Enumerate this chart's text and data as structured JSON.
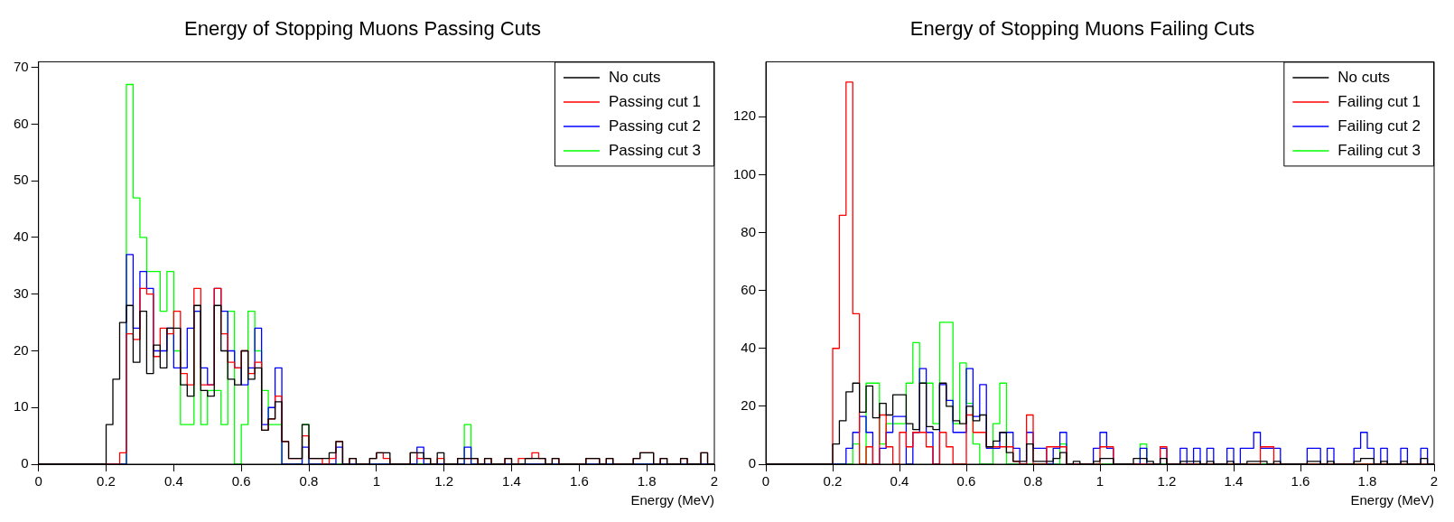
{
  "chart_data": [
    {
      "type": "histogram",
      "title": "Energy of Stopping Muons Passing Cuts",
      "xlabel": "Energy (MeV)",
      "bins": [
        0,
        0.02,
        0.04,
        0.06,
        0.08,
        0.1,
        0.12,
        0.14,
        0.16,
        0.18,
        0.2,
        0.22,
        0.24,
        0.26,
        0.28,
        0.3,
        0.32,
        0.34,
        0.36,
        0.38,
        0.4,
        0.42,
        0.44,
        0.46,
        0.48,
        0.5,
        0.52,
        0.54,
        0.56,
        0.58,
        0.6,
        0.62,
        0.64,
        0.66,
        0.68,
        0.7,
        0.72,
        0.74,
        0.76,
        0.78,
        0.8,
        0.82,
        0.84,
        0.86,
        0.88,
        0.9,
        0.92,
        0.94,
        0.96,
        0.98,
        1,
        1.02,
        1.04,
        1.06,
        1.08,
        1.1,
        1.12,
        1.14,
        1.16,
        1.18,
        1.2,
        1.22,
        1.24,
        1.26,
        1.28,
        1.3,
        1.32,
        1.34,
        1.36,
        1.38,
        1.4,
        1.42,
        1.44,
        1.46,
        1.48,
        1.5,
        1.52,
        1.54,
        1.56,
        1.58,
        1.6,
        1.62,
        1.64,
        1.66,
        1.68,
        1.7,
        1.72,
        1.74,
        1.76,
        1.78,
        1.8,
        1.82,
        1.84,
        1.86,
        1.88,
        1.9,
        1.92,
        1.94,
        1.96,
        1.98,
        2
      ],
      "series": [
        {
          "name": "No cuts",
          "color": "#000000",
          "values": [
            0,
            0,
            0,
            0,
            0,
            0,
            0,
            0,
            0,
            0,
            7,
            15,
            25,
            28,
            18,
            27,
            16,
            21,
            17,
            24,
            24,
            14,
            12,
            28,
            13,
            12,
            28,
            20,
            15,
            14,
            20,
            15,
            17,
            6,
            8,
            11,
            4,
            1,
            1,
            7,
            1,
            1,
            1,
            2,
            4,
            0,
            1,
            0,
            0,
            1,
            2,
            2,
            0,
            0,
            0,
            2,
            2,
            1,
            0,
            2,
            0,
            0,
            1,
            1,
            1,
            0,
            1,
            0,
            0,
            1,
            0,
            0,
            1,
            1,
            1,
            0,
            1,
            0,
            0,
            0,
            0,
            1,
            1,
            0,
            1,
            0,
            0,
            0,
            1,
            2,
            2,
            0,
            1,
            0,
            0,
            1,
            0,
            0,
            2,
            0
          ]
        },
        {
          "name": "Passing cut 1",
          "color": "#ff0000",
          "values": [
            0,
            0,
            0,
            0,
            0,
            0,
            0,
            0,
            0,
            0,
            0,
            0,
            2,
            23,
            22,
            31,
            30,
            19,
            24,
            23,
            27,
            16,
            14,
            31,
            14,
            14,
            31,
            23,
            18,
            17,
            20,
            16,
            18,
            6,
            8,
            12,
            4,
            1,
            1,
            5,
            1,
            1,
            0,
            1,
            4,
            0,
            1,
            0,
            0,
            1,
            2,
            1,
            0,
            0,
            0,
            2,
            1,
            1,
            0,
            1,
            0,
            0,
            1,
            1,
            1,
            0,
            1,
            0,
            0,
            1,
            0,
            1,
            1,
            2,
            1,
            0,
            1,
            0,
            0,
            0,
            0,
            1,
            1,
            0,
            1,
            0,
            0,
            0,
            1,
            2,
            2,
            0,
            1,
            0,
            0,
            1,
            0,
            0,
            2,
            0
          ]
        },
        {
          "name": "Passing cut 2",
          "color": "#0000ff",
          "values": [
            0,
            0,
            0,
            0,
            0,
            0,
            0,
            0,
            0,
            0,
            0,
            0,
            0,
            37,
            24,
            34,
            31,
            20,
            20,
            24,
            17,
            17,
            24,
            27,
            17,
            14,
            31,
            27,
            20,
            17,
            14,
            17,
            24,
            7,
            10,
            17,
            0,
            0,
            0,
            3,
            0,
            0,
            0,
            0,
            3,
            0,
            0,
            0,
            0,
            0,
            0,
            0,
            0,
            0,
            0,
            0,
            3,
            0,
            0,
            0,
            0,
            0,
            0,
            3,
            0,
            0,
            0,
            0,
            0,
            0,
            0,
            0,
            0,
            0,
            0,
            0,
            0,
            0,
            0,
            0,
            0,
            0,
            0,
            0,
            0,
            0,
            0,
            0,
            0,
            0,
            0,
            0,
            0,
            0,
            0,
            0,
            0,
            0,
            0,
            0
          ]
        },
        {
          "name": "Passing cut 3",
          "color": "#00ff00",
          "values": [
            0,
            0,
            0,
            0,
            0,
            0,
            0,
            0,
            0,
            0,
            0,
            0,
            0,
            67,
            47,
            40,
            34,
            34,
            27,
            34,
            20,
            7,
            7,
            27,
            7,
            13,
            13,
            7,
            27,
            0,
            7,
            27,
            20,
            13,
            7,
            7,
            0,
            0,
            0,
            7,
            0,
            0,
            0,
            0,
            0,
            0,
            0,
            0,
            0,
            0,
            0,
            0,
            0,
            0,
            0,
            0,
            0,
            0,
            0,
            0,
            0,
            0,
            0,
            7,
            0,
            0,
            0,
            0,
            0,
            0,
            0,
            0,
            0,
            0,
            0,
            0,
            0,
            0,
            0,
            0,
            0,
            0,
            0,
            0,
            0,
            0,
            0,
            0,
            0,
            0,
            0,
            0,
            0,
            0,
            0,
            0,
            0,
            0,
            0,
            0
          ]
        }
      ],
      "xlim": [
        0,
        2
      ],
      "xticks": [
        0,
        0.2,
        0.4,
        0.6,
        0.8,
        1,
        1.2,
        1.4,
        1.6,
        1.8,
        2
      ],
      "ylim": [
        0,
        71
      ],
      "yticks": [
        0,
        10,
        20,
        30,
        40,
        50,
        60,
        70
      ],
      "legend": "top right"
    },
    {
      "type": "histogram",
      "title": "Energy of Stopping Muons Failing Cuts",
      "xlabel": "Energy (MeV)",
      "bins": [
        0,
        0.02,
        0.04,
        0.06,
        0.08,
        0.1,
        0.12,
        0.14,
        0.16,
        0.18,
        0.2,
        0.22,
        0.24,
        0.26,
        0.28,
        0.3,
        0.32,
        0.34,
        0.36,
        0.38,
        0.4,
        0.42,
        0.44,
        0.46,
        0.48,
        0.5,
        0.52,
        0.54,
        0.56,
        0.58,
        0.6,
        0.62,
        0.64,
        0.66,
        0.68,
        0.7,
        0.72,
        0.74,
        0.76,
        0.78,
        0.8,
        0.82,
        0.84,
        0.86,
        0.88,
        0.9,
        0.92,
        0.94,
        0.96,
        0.98,
        1,
        1.02,
        1.04,
        1.06,
        1.08,
        1.1,
        1.12,
        1.14,
        1.16,
        1.18,
        1.2,
        1.22,
        1.24,
        1.26,
        1.28,
        1.3,
        1.32,
        1.34,
        1.36,
        1.38,
        1.4,
        1.42,
        1.44,
        1.46,
        1.48,
        1.5,
        1.52,
        1.54,
        1.56,
        1.58,
        1.6,
        1.62,
        1.64,
        1.66,
        1.68,
        1.7,
        1.72,
        1.74,
        1.76,
        1.78,
        1.8,
        1.82,
        1.84,
        1.86,
        1.88,
        1.9,
        1.92,
        1.94,
        1.96,
        1.98,
        2
      ],
      "series": [
        {
          "name": "No cuts",
          "color": "#000000",
          "values": [
            0,
            0,
            0,
            0,
            0,
            0,
            0,
            0,
            0,
            0,
            7,
            15,
            25,
            28,
            18,
            27,
            16,
            21,
            17,
            24,
            24,
            14,
            12,
            28,
            13,
            12,
            28,
            20,
            15,
            14,
            20,
            15,
            17,
            6,
            8,
            11,
            4,
            1,
            1,
            7,
            1,
            1,
            1,
            2,
            4,
            0,
            1,
            0,
            0,
            1,
            2,
            2,
            0,
            0,
            0,
            2,
            2,
            1,
            0,
            2,
            0,
            0,
            1,
            1,
            1,
            0,
            1,
            0,
            0,
            1,
            0,
            0,
            1,
            1,
            1,
            0,
            1,
            0,
            0,
            0,
            0,
            1,
            1,
            0,
            1,
            0,
            0,
            0,
            1,
            2,
            2,
            0,
            1,
            0,
            0,
            1,
            0,
            0,
            2,
            0
          ]
        },
        {
          "name": "Failing cut 1",
          "color": "#ff0000",
          "values": [
            0,
            0,
            0,
            0,
            0,
            0,
            0,
            0,
            0,
            0,
            40,
            86,
            132,
            52,
            0,
            6,
            0,
            17,
            6,
            0,
            11,
            6,
            11,
            11,
            6,
            0,
            11,
            6,
            0,
            0,
            17,
            11,
            11,
            6,
            6,
            6,
            6,
            1,
            0,
            17,
            0,
            0,
            6,
            6,
            6,
            0,
            0,
            0,
            0,
            0,
            6,
            6,
            0,
            0,
            0,
            0,
            0,
            0,
            0,
            6,
            0,
            0,
            0,
            0,
            0,
            0,
            0,
            0,
            0,
            0,
            0,
            0,
            0,
            0,
            6,
            6,
            0,
            0,
            0,
            0,
            0,
            0,
            0,
            0,
            0,
            0,
            0,
            0,
            0,
            0,
            0,
            0,
            0,
            0,
            0,
            0,
            0,
            0,
            0,
            0
          ]
        },
        {
          "name": "Failing cut 2",
          "color": "#0000ff",
          "values": [
            0,
            0,
            0,
            0,
            0,
            0,
            0,
            0,
            0,
            0,
            0,
            0,
            5.5,
            11,
            16.5,
            11,
            0,
            5.5,
            11,
            16.5,
            16.5,
            0,
            11,
            33,
            11,
            0,
            27.5,
            22,
            11,
            11,
            33,
            16.5,
            27.5,
            5.5,
            5.5,
            11,
            11,
            5.5,
            0,
            11,
            5.5,
            5.5,
            0,
            5.5,
            11,
            0,
            0,
            0,
            0,
            5.5,
            11,
            5.5,
            0,
            0,
            0,
            0,
            5.5,
            0,
            0,
            5.5,
            0,
            0,
            5.5,
            0,
            5.5,
            0,
            5.5,
            0,
            0,
            5.5,
            0,
            5.5,
            5.5,
            11,
            5.5,
            5.5,
            5.5,
            0,
            0,
            0,
            0,
            5.5,
            5.5,
            0,
            5.5,
            0,
            0,
            0,
            5.5,
            11,
            5.5,
            0,
            5.5,
            0,
            0,
            5.5,
            0,
            0,
            5.5,
            0
          ]
        },
        {
          "name": "Failing cut 3",
          "color": "#00ff00",
          "values": [
            0,
            0,
            0,
            0,
            0,
            0,
            0,
            0,
            0,
            0,
            0,
            0,
            0,
            7,
            0,
            28,
            28,
            7,
            14,
            14,
            14,
            28,
            42,
            28,
            28,
            14,
            49,
            49,
            14,
            35,
            21,
            7,
            0,
            0,
            14,
            28,
            0,
            0,
            0,
            0,
            0,
            0,
            0,
            0,
            7,
            0,
            0,
            0,
            0,
            0,
            0,
            0,
            0,
            0,
            0,
            0,
            7,
            0,
            0,
            0,
            0,
            0,
            0,
            0,
            0,
            0,
            0,
            0,
            0,
            0,
            0,
            0,
            0,
            0,
            0,
            0,
            0,
            0,
            0,
            0,
            0,
            0,
            0,
            0,
            0,
            0,
            0,
            0,
            0,
            0,
            0,
            0,
            0,
            0,
            0,
            0,
            0,
            0,
            0,
            0
          ]
        }
      ],
      "xlim": [
        0,
        2
      ],
      "xticks": [
        0,
        0.2,
        0.4,
        0.6,
        0.8,
        1,
        1.2,
        1.4,
        1.6,
        1.8,
        2
      ],
      "ylim": [
        0,
        139
      ],
      "yticks": [
        0,
        20,
        40,
        60,
        80,
        100,
        120
      ],
      "legend": "top right"
    }
  ]
}
